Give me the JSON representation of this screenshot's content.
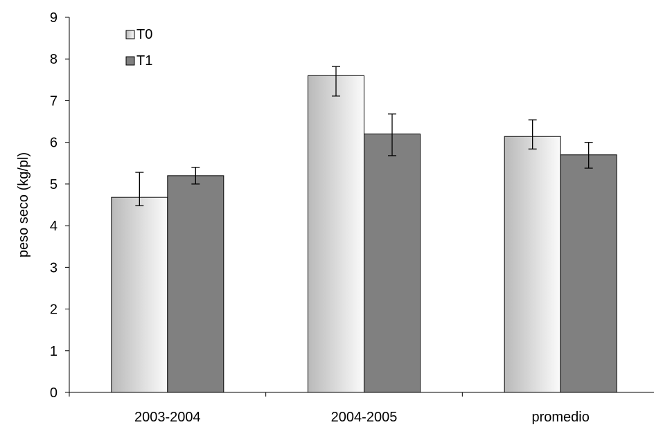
{
  "chart_data": {
    "type": "bar",
    "title": "",
    "xlabel": "",
    "ylabel": "peso seco (kg/pl)",
    "ylim": [
      0,
      9
    ],
    "yticks": [
      0,
      1,
      2,
      3,
      4,
      5,
      6,
      7,
      8,
      9
    ],
    "categories": [
      "2003-2004",
      "2004-2005",
      "promedio"
    ],
    "series": [
      {
        "name": "T0",
        "color": "#e6e6e6",
        "values": [
          4.68,
          7.6,
          6.14
        ],
        "error_low": [
          4.48,
          7.11,
          5.84
        ],
        "error_high": [
          5.28,
          7.82,
          6.54
        ]
      },
      {
        "name": "T1",
        "color": "#808080",
        "values": [
          5.2,
          6.2,
          5.7
        ],
        "error_low": [
          5.0,
          5.68,
          5.38
        ],
        "error_high": [
          5.4,
          6.68,
          6.0
        ]
      }
    ],
    "legend": {
      "position": "top-left"
    },
    "grid": false
  }
}
